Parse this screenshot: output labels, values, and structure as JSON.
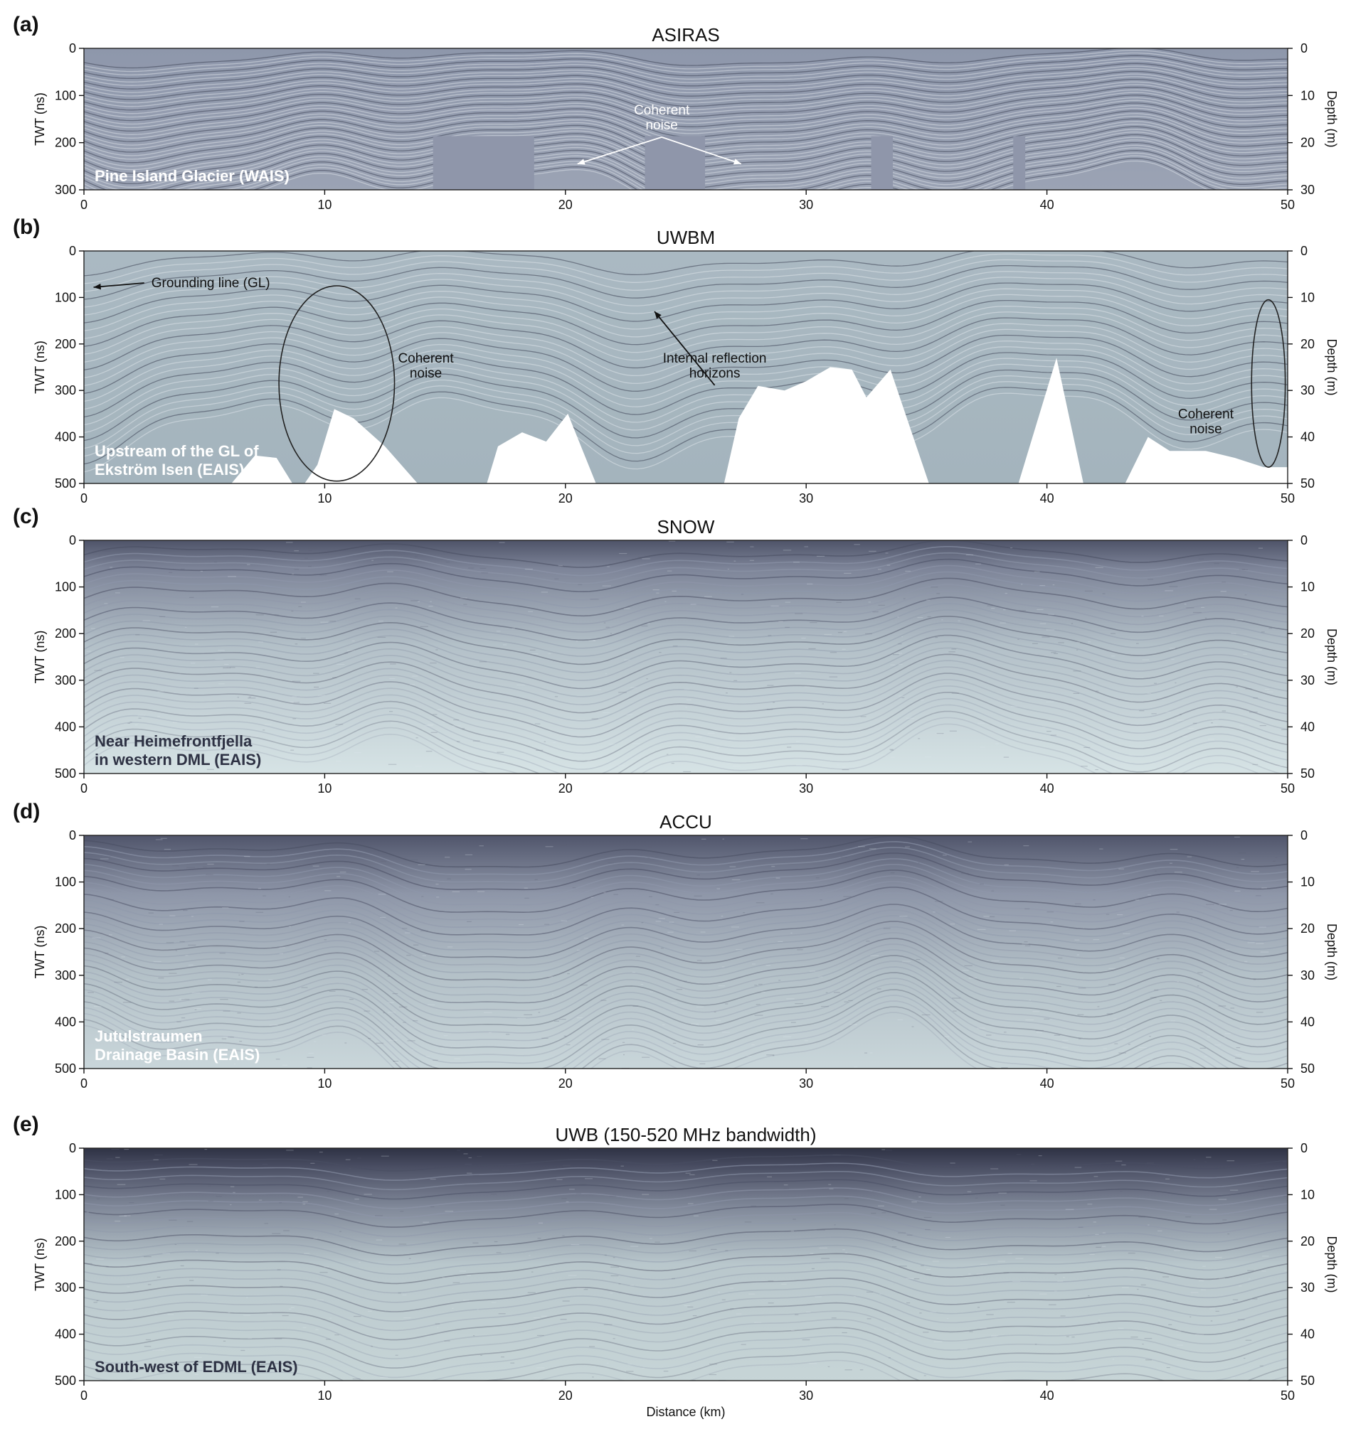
{
  "figure": {
    "x_axis_label": "Distance (km)",
    "shared_ticks": {
      "x": [
        0,
        10,
        20,
        30,
        40,
        50
      ]
    }
  },
  "colors": {
    "radargram_light": "#c9d8dc",
    "radargram_mid": "#9eaab8",
    "radargram_dark": "#3f4358",
    "asiras_base": "#9aa1b3",
    "uwbm_base": "#a7b7c0",
    "frame": "#222222"
  },
  "chart_data": [
    {
      "type": "heatmap",
      "panel_letter": "(a)",
      "title": "ASIRAS",
      "xlabel": "",
      "ylabel": "TWT (ns)",
      "y2label": "Depth (m)",
      "xlim": [
        0,
        50
      ],
      "ylim": [
        0,
        300
      ],
      "y2lim": [
        0,
        30
      ],
      "xticks": [
        0,
        10,
        20,
        30,
        40,
        50
      ],
      "yticks": [
        0,
        100,
        200,
        300
      ],
      "y2ticks": [
        0,
        10,
        20,
        30
      ],
      "location_label": [
        "Pine Island Glacier (WAIS)"
      ],
      "annotations": [
        {
          "text": [
            "Coherent",
            "noise"
          ],
          "x": 24.0,
          "y": 140,
          "color": "#ffffff",
          "arrows_to": [
            [
              20.5,
              245
            ],
            [
              27.3,
              245
            ]
          ]
        }
      ],
      "layer_depth_range_ns": [
        20,
        300
      ],
      "layer_undulation_ns": 40,
      "layer_count": 44,
      "no_data_blocks_km": [
        [
          14.5,
          18.7
        ],
        [
          23.3,
          25.8
        ],
        [
          32.7,
          33.6
        ],
        [
          38.6,
          39.1
        ]
      ]
    },
    {
      "type": "heatmap",
      "panel_letter": "(b)",
      "title": "UWBM",
      "xlabel": "",
      "ylabel": "TWT (ns)",
      "y2label": "Depth (m)",
      "xlim": [
        0,
        50
      ],
      "ylim": [
        0,
        500
      ],
      "y2lim": [
        0,
        50
      ],
      "xticks": [
        0,
        10,
        20,
        30,
        40,
        50
      ],
      "yticks": [
        0,
        100,
        200,
        300,
        400,
        500
      ],
      "y2ticks": [
        0,
        10,
        20,
        30,
        40,
        50
      ],
      "location_label": [
        "Upstream of the GL of",
        "Ekström Isen (EAIS)"
      ],
      "annotations": [
        {
          "text": [
            "Grounding line (GL)"
          ],
          "x": 2.8,
          "y": 78,
          "color": "#111111",
          "arrows_to": [
            [
              0.4,
              78
            ]
          ]
        },
        {
          "text": [
            "Coherent",
            "noise"
          ],
          "x": 14.2,
          "y": 240,
          "color": "#111111",
          "arrows_to": []
        },
        {
          "text": [
            "Internal reflection",
            "horizons"
          ],
          "x": 26.2,
          "y": 240,
          "color": "#111111",
          "arrows_to": [
            [
              23.7,
              130
            ]
          ]
        },
        {
          "text": [
            "Coherent",
            "noise"
          ],
          "x": 46.6,
          "y": 360,
          "color": "#111111",
          "arrows_to": []
        }
      ],
      "ellipses": [
        {
          "cx": 10.5,
          "cy": 285,
          "rx": 2.4,
          "ry": 210
        },
        {
          "cx": 49.2,
          "cy": 285,
          "rx": 0.7,
          "ry": 180
        }
      ],
      "bed_profile": [
        [
          0,
          620
        ],
        [
          5.8,
          520
        ],
        [
          7.1,
          440
        ],
        [
          8.0,
          445
        ],
        [
          8.9,
          520
        ],
        [
          9.7,
          460
        ],
        [
          10.4,
          340
        ],
        [
          11.2,
          360
        ],
        [
          12.5,
          420
        ],
        [
          14.2,
          520
        ],
        [
          16.5,
          540
        ],
        [
          17.2,
          420
        ],
        [
          18.2,
          390
        ],
        [
          19.2,
          410
        ],
        [
          20.1,
          350
        ],
        [
          20.8,
          440
        ],
        [
          21.5,
          530
        ],
        [
          23.0,
          540
        ],
        [
          26.5,
          520
        ],
        [
          27.2,
          360
        ],
        [
          28.0,
          290
        ],
        [
          29.1,
          300
        ],
        [
          30.0,
          280
        ],
        [
          31.0,
          250
        ],
        [
          31.9,
          255
        ],
        [
          32.5,
          315
        ],
        [
          33.5,
          255
        ],
        [
          35.1,
          500
        ],
        [
          36.5,
          540
        ],
        [
          38.7,
          520
        ],
        [
          40.4,
          230
        ],
        [
          41.6,
          520
        ],
        [
          42.3,
          540
        ],
        [
          43.2,
          505
        ],
        [
          44.2,
          400
        ],
        [
          45.1,
          430
        ],
        [
          46.6,
          430
        ],
        [
          47.8,
          445
        ],
        [
          49.0,
          465
        ],
        [
          50.0,
          465
        ]
      ],
      "layer_depth_range_ns": [
        20,
        380
      ],
      "layer_undulation_ns": 60,
      "layer_count": 26
    },
    {
      "type": "heatmap",
      "panel_letter": "(c)",
      "title": "SNOW",
      "xlabel": "",
      "ylabel": "TWT (ns)",
      "y2label": "Depth (m)",
      "xlim": [
        0,
        50
      ],
      "ylim": [
        0,
        500
      ],
      "y2lim": [
        0,
        50
      ],
      "xticks": [
        0,
        10,
        20,
        30,
        40,
        50
      ],
      "yticks": [
        0,
        100,
        200,
        300,
        400,
        500
      ],
      "y2ticks": [
        0,
        10,
        20,
        30,
        40,
        50
      ],
      "location_label": [
        "Near Heimefrontfjella",
        "in western DML (EAIS)"
      ],
      "annotations": [],
      "layer_depth_range_ns": [
        30,
        480
      ],
      "layer_undulation_ns": 55,
      "layer_count": 30
    },
    {
      "type": "heatmap",
      "panel_letter": "(d)",
      "title": "ACCU",
      "xlabel": "",
      "ylabel": "TWT (ns)",
      "y2label": "Depth (m)",
      "xlim": [
        0,
        50
      ],
      "ylim": [
        0,
        500
      ],
      "y2lim": [
        0,
        50
      ],
      "xticks": [
        0,
        10,
        20,
        30,
        40,
        50
      ],
      "yticks": [
        0,
        100,
        200,
        300,
        400,
        500
      ],
      "y2ticks": [
        0,
        10,
        20,
        30,
        40,
        50
      ],
      "location_label": [
        "Jutulstraumen",
        "Drainage Basin (EAIS)"
      ],
      "annotations": [],
      "layer_depth_range_ns": [
        40,
        490
      ],
      "layer_undulation_ns": 70,
      "layer_count": 32
    },
    {
      "type": "heatmap",
      "panel_letter": "(e)",
      "title": "UWB (150-520 MHz bandwidth)",
      "xlabel": "Distance (km)",
      "ylabel": "TWT (ns)",
      "y2label": "Depth (m)",
      "xlim": [
        0,
        50
      ],
      "ylim": [
        0,
        500
      ],
      "y2lim": [
        0,
        50
      ],
      "xticks": [
        0,
        10,
        20,
        30,
        40,
        50
      ],
      "yticks": [
        0,
        100,
        200,
        300,
        400,
        500
      ],
      "y2ticks": [
        0,
        10,
        20,
        30,
        40,
        50
      ],
      "location_label": [
        "South-west of EDML (EAIS)"
      ],
      "annotations": [],
      "layer_depth_range_ns": [
        30,
        500
      ],
      "layer_undulation_ns": 35,
      "layer_count": 26
    }
  ]
}
